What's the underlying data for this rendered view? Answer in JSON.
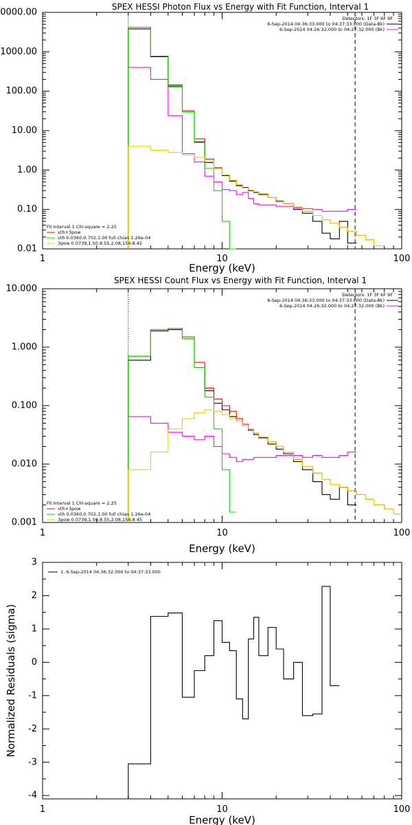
{
  "chart_data": [
    {
      "type": "line",
      "title": "SPEX HESSI Photon Flux vs Energy with Fit Function, Interval 1",
      "xlabel": "Energy (keV)",
      "ylabel": "",
      "xscale": "log",
      "yscale": "log",
      "xlim": [
        1,
        100
      ],
      "ylim": [
        0.01,
        10000
      ],
      "x_tick_labels": [
        "1",
        "10",
        "100"
      ],
      "y_tick_labels": [
        "0.01",
        "0.10",
        "1.00",
        "10.00",
        "100.00",
        "1000.00",
        "10000.00"
      ],
      "bin_edges": [
        3,
        4,
        5,
        6,
        7,
        8,
        9,
        10,
        11,
        12,
        13,
        14,
        15,
        16,
        18,
        20,
        22,
        25,
        28,
        32,
        36,
        40,
        45,
        50,
        56,
        63,
        70,
        80
      ],
      "series": [
        {
          "name": "",
          "color": "#000000",
          "values": [
            3800,
            750,
            130,
            30,
            5.2,
            1.55,
            1.1,
            0.72,
            0.52,
            0.4,
            0.36,
            0.3,
            0.27,
            0.24,
            0.2,
            0.16,
            0.14,
            0.1,
            0.08,
            0.05,
            0.025,
            0.018,
            0.05,
            0.014
          ]
        },
        {
          "name": "",
          "color": "#ff00ff",
          "values": [
            400,
            200,
            24,
            2.6,
            1.6,
            0.7,
            0.5,
            0.32,
            0.3,
            0.24,
            0.27,
            0.19,
            0.14,
            0.13,
            0.13,
            0.12,
            0.12,
            0.11,
            0.105,
            0.1,
            0.09,
            0.09,
            0.09,
            0.1
          ]
        },
        {
          "name": "vth+3pow",
          "color": "#ff0000",
          "values": [
            4200,
            780,
            145,
            32,
            6.2,
            1.9,
            1.15,
            0.75,
            0.55,
            0.42,
            0.35,
            0.31,
            0.28,
            0.25,
            0.2,
            0.17,
            0.14,
            0.115,
            0.09,
            0.07,
            0.055,
            0.045,
            0.035,
            0.028,
            0.022,
            0.017,
            0.012
          ]
        },
        {
          "name": "vth 0.0360,0.702,1.00  full chian 1.26e-04",
          "color": "#00dd00",
          "values": [
            4200,
            780,
            140,
            30,
            5,
            1.1,
            0.3,
            0.05,
            0.007
          ]
        },
        {
          "name": "3pow 0.0739,1.50,8.55,2.08,154,8.45",
          "color": "#e8d000",
          "values": [
            4,
            3.2,
            2.8,
            2.4,
            2.1,
            1.7,
            1.1,
            0.75,
            0.55,
            0.42,
            0.35,
            0.31,
            0.28,
            0.25,
            0.2,
            0.17,
            0.14,
            0.115,
            0.09,
            0.07,
            0.055,
            0.045,
            0.035,
            0.028,
            0.022,
            0.017,
            0.012
          ]
        }
      ],
      "vlines": [
        {
          "x": 3,
          "style": "dotted"
        },
        {
          "x": 55,
          "style": "dashed"
        }
      ],
      "legend_top_right": [
        "Detectors: 1F 3F 6F 9F",
        "6-Sep-2014 04:36:33.000 to 04:37:33.000 (Data-Bk)",
        "6-Sep-2014 04:26:32.000 to 04:27:32.000 (Bk)"
      ],
      "legend_bottom_left": [
        "Fit Interval 1   Chi-square = 2.25",
        "vth+3pow",
        "vth 0.0360,0.702,1.00  full chian 1.26e-04",
        "3pow 0.0739,1.50,8.55,2.08,154,8.45"
      ]
    },
    {
      "type": "line",
      "title": "SPEX HESSI Count Flux vs Energy with Fit Function, Interval 1",
      "xlabel": "Energy (keV)",
      "ylabel": "",
      "xscale": "log",
      "yscale": "log",
      "xlim": [
        1,
        100
      ],
      "ylim": [
        0.001,
        10
      ],
      "x_tick_labels": [
        "1",
        "10",
        "100"
      ],
      "y_tick_labels": [
        "0.001",
        "0.010",
        "0.100",
        "1.000",
        "10.000"
      ],
      "bin_edges": [
        3,
        4,
        5,
        6,
        7,
        8,
        9,
        10,
        11,
        12,
        13,
        14,
        15,
        16,
        18,
        20,
        22,
        25,
        28,
        32,
        36,
        40,
        45,
        50,
        56,
        63,
        70,
        80,
        90,
        100
      ],
      "series": [
        {
          "name": "",
          "color": "#000000",
          "values": [
            0.6,
            1.9,
            2.0,
            1.4,
            0.45,
            0.18,
            0.11,
            0.085,
            0.065,
            0.055,
            0.045,
            0.038,
            0.032,
            0.028,
            0.022,
            0.018,
            0.015,
            0.011,
            0.008,
            0.005,
            0.003,
            0.0025,
            0.004,
            0.002
          ]
        },
        {
          "name": "",
          "color": "#ff00ff",
          "values": [
            0.065,
            0.05,
            0.035,
            0.03,
            0.026,
            0.03,
            0.02,
            0.015,
            0.013,
            0.011,
            0.012,
            0.012,
            0.013,
            0.013,
            0.013,
            0.014,
            0.014,
            0.014,
            0.013,
            0.014,
            0.013,
            0.013,
            0.014,
            0.016
          ]
        },
        {
          "name": "vth+3pow",
          "color": "#ff0000",
          "values": [
            0.7,
            2.0,
            2.1,
            1.5,
            0.55,
            0.2,
            0.13,
            0.1,
            0.08,
            0.06,
            0.048,
            0.04,
            0.034,
            0.029,
            0.024,
            0.02,
            0.016,
            0.012,
            0.009,
            0.007,
            0.0055,
            0.0045,
            0.004,
            0.0035,
            0.003,
            0.0025,
            0.002,
            0.0017,
            0.0014
          ]
        },
        {
          "name": "vth 0.0360,0.702,1.00  full chian 1.26e-04",
          "color": "#00dd00",
          "values": [
            0.7,
            2.0,
            2.1,
            1.4,
            0.45,
            0.14,
            0.04,
            0.008,
            0.0015
          ]
        },
        {
          "name": "3pow 0.0739,1.50,8.55,2.08,154,8.45",
          "color": "#e8d000",
          "values": [
            0.008,
            0.016,
            0.04,
            0.06,
            0.075,
            0.085,
            0.08,
            0.07,
            0.06,
            0.055,
            0.045,
            0.04,
            0.034,
            0.029,
            0.024,
            0.02,
            0.016,
            0.012,
            0.009,
            0.007,
            0.0055,
            0.0045,
            0.004,
            0.0035,
            0.003,
            0.0025,
            0.002,
            0.0017,
            0.0014
          ]
        }
      ],
      "vlines": [
        {
          "x": 3,
          "style": "dotted"
        },
        {
          "x": 55,
          "style": "dashed"
        }
      ],
      "legend_top_right": [
        "Detectors: 1F 3F 6F 9F",
        "6-Sep-2014 04:36:33.000 to 04:37:33.000 (Data-Bk)",
        "6-Sep-2014 04:26:32.000 to 04:27:32.000 (Bk)"
      ],
      "legend_bottom_left": [
        "Fit Interval 1   Chi-square = 2.25",
        "vth+3pow",
        "vth 0.0360,0.702,1.00  full chian 1.26e-04",
        "3pow 0.0739,1.50,8.55,2.08,154,8.45"
      ]
    },
    {
      "type": "line",
      "title": "",
      "xlabel": "Energy (keV)",
      "ylabel": "Normalized Residuals (sigma)",
      "xscale": "log",
      "yscale": "linear",
      "xlim": [
        1,
        100
      ],
      "ylim": [
        -4.1,
        3
      ],
      "x_tick_labels": [
        "1",
        "10",
        "100"
      ],
      "y_tick_labels": [
        "-4",
        "-3",
        "-2",
        "-1",
        "0",
        "1",
        "2",
        "3"
      ],
      "bin_edges": [
        3,
        4,
        5,
        6,
        7,
        8,
        9,
        10,
        11,
        12,
        13,
        14,
        15,
        16,
        18,
        20,
        22,
        25,
        28,
        32,
        36,
        40,
        45,
        50,
        56
      ],
      "series": [
        {
          "name": "1.  6-Sep-2014 04:36:32.000 to 04:37:33.000",
          "color": "#000000",
          "values": [
            -3.05,
            1.38,
            1.48,
            -1.05,
            -0.25,
            0.2,
            1.25,
            0.6,
            0.35,
            -1.1,
            -1.7,
            0.7,
            1.35,
            0.2,
            1.05,
            0.4,
            -0.5,
            0,
            -1.6,
            -1.55,
            2.28,
            -0.7
          ]
        }
      ],
      "legend_top_left": [
        "1.  6-Sep-2014 04:36:32.000 to 04:37:33.000"
      ]
    }
  ]
}
